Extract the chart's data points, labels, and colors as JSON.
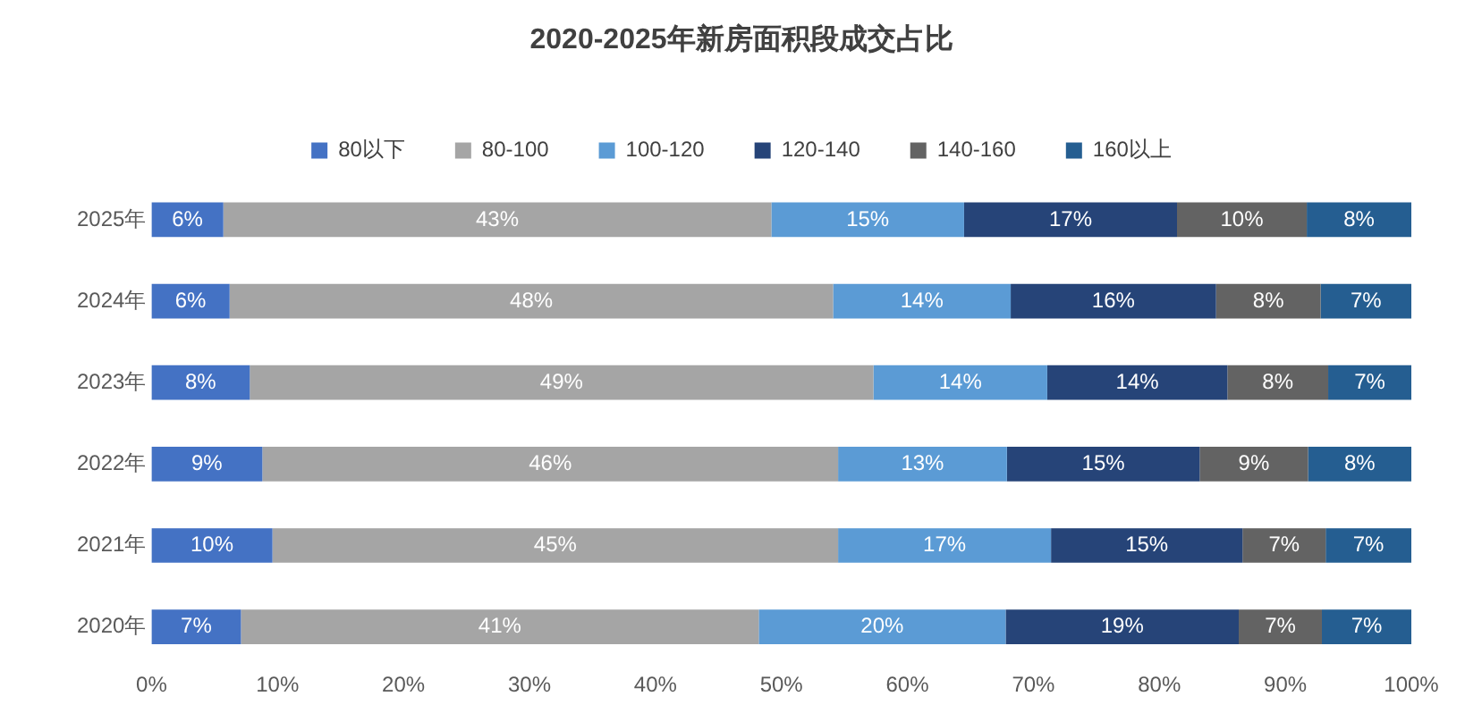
{
  "chart_data": {
    "type": "bar",
    "title": "2020-2025年新房面积段成交占比",
    "orientation": "horizontal",
    "stacked": true,
    "legend": "top",
    "grid": false,
    "categories": [
      "2025年",
      "2024年",
      "2023年",
      "2022年",
      "2021年",
      "2020年"
    ],
    "xlim": [
      0,
      100
    ],
    "xticks": [
      {
        "value": 0,
        "label": "0%"
      },
      {
        "value": 10,
        "label": "10%"
      },
      {
        "value": 20,
        "label": "20%"
      },
      {
        "value": 30,
        "label": "30%"
      },
      {
        "value": 40,
        "label": "40%"
      },
      {
        "value": 50,
        "label": "50%"
      },
      {
        "value": 60,
        "label": "60%"
      },
      {
        "value": 70,
        "label": "70%"
      },
      {
        "value": 80,
        "label": "80%"
      },
      {
        "value": 90,
        "label": "90%"
      },
      {
        "value": 100,
        "label": "100%"
      }
    ],
    "series": [
      {
        "name": "80以下",
        "color": "#4472c4",
        "values": [
          5.7,
          6.2,
          7.8,
          8.8,
          9.6,
          7.1
        ],
        "value_labels": [
          "6%",
          "6%",
          "8%",
          "9%",
          "10%",
          "7%"
        ]
      },
      {
        "name": "80-100",
        "color": "#a5a5a5",
        "values": [
          43.5,
          47.9,
          49.5,
          45.7,
          44.9,
          41.1
        ],
        "value_labels": [
          "43%",
          "48%",
          "49%",
          "46%",
          "45%",
          "41%"
        ]
      },
      {
        "name": "100-120",
        "color": "#5b9bd5",
        "values": [
          15.3,
          14.1,
          13.8,
          13.4,
          16.9,
          19.6
        ],
        "value_labels": [
          "15%",
          "14%",
          "14%",
          "13%",
          "17%",
          "20%"
        ]
      },
      {
        "name": "120-140",
        "color": "#264478",
        "values": [
          16.9,
          16.3,
          14.3,
          15.3,
          15.2,
          18.5
        ],
        "value_labels": [
          "17%",
          "16%",
          "14%",
          "15%",
          "15%",
          "19%"
        ]
      },
      {
        "name": "140-160",
        "color": "#636363",
        "values": [
          10.3,
          8.3,
          8.0,
          8.6,
          6.6,
          6.6
        ],
        "value_labels": [
          "10%",
          "8%",
          "8%",
          "9%",
          "7%",
          "7%"
        ]
      },
      {
        "name": "160以上",
        "color": "#255e91",
        "values": [
          8.3,
          7.2,
          6.6,
          8.2,
          6.8,
          7.1
        ],
        "value_labels": [
          "8%",
          "7%",
          "7%",
          "8%",
          "7%",
          "7%"
        ]
      }
    ]
  }
}
